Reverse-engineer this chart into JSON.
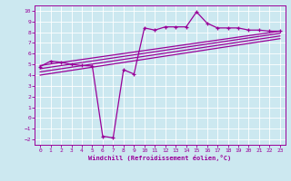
{
  "xlabel": "Windchill (Refroidissement éolien,°C)",
  "bg_color": "#cce8f0",
  "line_color": "#990099",
  "grid_color": "#ffffff",
  "xlim": [
    -0.5,
    23.5
  ],
  "ylim": [
    -2.5,
    10.5
  ],
  "xticks": [
    0,
    1,
    2,
    3,
    4,
    5,
    6,
    7,
    8,
    9,
    10,
    11,
    12,
    13,
    14,
    15,
    16,
    17,
    18,
    19,
    20,
    21,
    22,
    23
  ],
  "yticks": [
    -2,
    -1,
    0,
    1,
    2,
    3,
    4,
    5,
    6,
    7,
    8,
    9,
    10
  ],
  "line1_x": [
    0,
    1,
    2,
    3,
    4,
    5,
    6,
    7,
    8,
    9,
    10,
    11,
    12,
    13,
    14,
    15,
    16,
    17,
    18,
    19,
    20,
    21,
    22,
    23
  ],
  "line1_y": [
    4.8,
    5.3,
    5.2,
    5.0,
    4.9,
    4.85,
    -1.7,
    -1.85,
    4.5,
    4.1,
    8.4,
    8.2,
    8.5,
    8.5,
    8.5,
    9.9,
    8.85,
    8.4,
    8.4,
    8.4,
    8.2,
    8.2,
    8.1,
    8.1
  ],
  "line2_x": [
    0,
    23
  ],
  "line2_y": [
    4.9,
    8.1
  ],
  "line3_x": [
    0,
    23
  ],
  "line3_y": [
    4.6,
    7.9
  ],
  "line4_x": [
    0,
    23
  ],
  "line4_y": [
    4.3,
    7.65
  ],
  "line5_x": [
    0,
    23
  ],
  "line5_y": [
    4.0,
    7.4
  ]
}
